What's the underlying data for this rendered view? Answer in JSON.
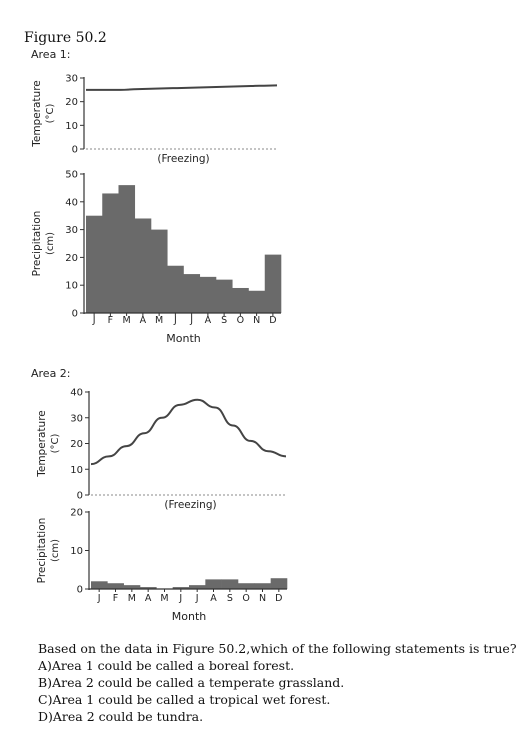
{
  "figure_title": "Figure 50.2",
  "chart_data": [
    {
      "type": "line",
      "panel": "Area 1: Temperature",
      "area_label": "Area 1:",
      "ylabel": "Temperature (°C)",
      "ylabel_line1": "Temperature",
      "ylabel_line2": "(°C)",
      "ylim": [
        0,
        30
      ],
      "yticks": [
        "0",
        "10",
        "20",
        "30"
      ],
      "x": [
        "J",
        "F",
        "M",
        "A",
        "M",
        "J",
        "J",
        "A",
        "S",
        "O",
        "N",
        "D"
      ],
      "values": [
        25,
        25,
        25,
        25.3,
        25.5,
        25.7,
        25.9,
        26.1,
        26.3,
        26.5,
        26.7,
        26.9
      ],
      "reference_line": {
        "value": 0,
        "label": "(Freezing)"
      }
    },
    {
      "type": "bar",
      "panel": "Area 1: Precipitation",
      "ylabel": "Precipitation (cm)",
      "ylabel_line1": "Precipitation",
      "ylabel_line2": "(cm)",
      "ylim": [
        0,
        50
      ],
      "yticks": [
        "0",
        "10",
        "20",
        "30",
        "40",
        "50"
      ],
      "categories": [
        "J",
        "F",
        "M",
        "A",
        "M",
        "J",
        "J",
        "A",
        "S",
        "O",
        "N",
        "D"
      ],
      "values": [
        35,
        43,
        46,
        34,
        30,
        17,
        14,
        13,
        12,
        9,
        8,
        21
      ],
      "xlabel": "Month"
    },
    {
      "type": "line",
      "panel": "Area 2: Temperature",
      "area_label": "Area 2:",
      "ylabel": "Temperature (°C)",
      "ylabel_line1": "Temperature",
      "ylabel_line2": "(°C)",
      "ylim": [
        0,
        40
      ],
      "yticks": [
        "0",
        "10",
        "20",
        "30",
        "40"
      ],
      "x": [
        "J",
        "F",
        "M",
        "A",
        "M",
        "J",
        "J",
        "A",
        "S",
        "O",
        "N",
        "D"
      ],
      "values": [
        12,
        15,
        19,
        24,
        30,
        35,
        37,
        34,
        27,
        21,
        17,
        15
      ],
      "reference_line": {
        "value": 0,
        "label": "(Freezing)"
      }
    },
    {
      "type": "bar",
      "panel": "Area 2: Precipitation",
      "ylabel": "Precipitation (cm)",
      "ylabel_line1": "Precipitation",
      "ylabel_line2": "(cm)",
      "ylim": [
        0,
        20
      ],
      "yticks": [
        "0",
        "10",
        "20"
      ],
      "categories": [
        "J",
        "F",
        "M",
        "A",
        "M",
        "J",
        "J",
        "A",
        "S",
        "O",
        "N",
        "D"
      ],
      "values": [
        2,
        1.5,
        1,
        0.5,
        0,
        0.5,
        1,
        2.5,
        2.5,
        1.5,
        1.5,
        2.8
      ],
      "xlabel": "Month"
    }
  ],
  "question": {
    "stem": "Based on the data in Figure 50.2,which of the following statements is true?",
    "options": [
      "A)Area 1 could be called a boreal forest.",
      "B)Area 2 could be called a temperate grassland.",
      "C)Area 1 could be called a tropical wet forest.",
      "D)Area 2 could be tundra."
    ]
  },
  "colors": {
    "bar_fill": "#6a6a6a",
    "line": "#444444",
    "axis": "#333333",
    "freezing_line": "#8a8a8a"
  }
}
